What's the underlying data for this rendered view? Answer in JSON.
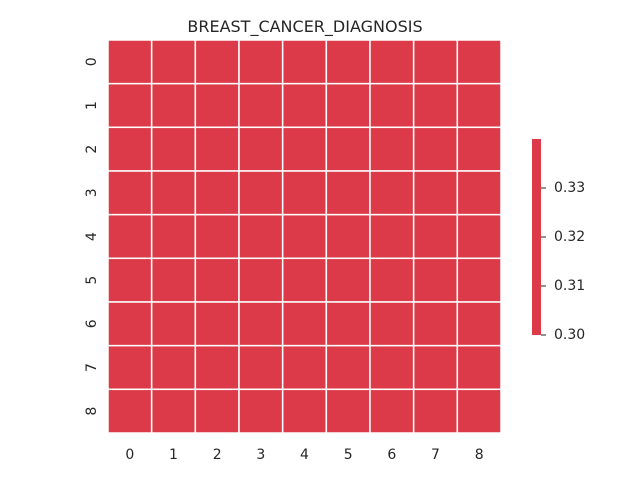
{
  "chart_data": {
    "type": "heatmap",
    "title": "BREAST_CANCER_DIAGNOSIS",
    "x_tick_labels": [
      "0",
      "1",
      "2",
      "3",
      "4",
      "5",
      "6",
      "7",
      "8"
    ],
    "y_tick_labels": [
      "0",
      "1",
      "2",
      "3",
      "4",
      "5",
      "6",
      "7",
      "8"
    ],
    "values": [
      [
        0.3,
        0.3,
        0.3,
        0.3,
        0.3,
        0.3,
        0.3,
        0.3,
        0.3
      ],
      [
        0.3,
        0.3,
        0.3,
        0.3,
        0.3,
        0.3,
        0.3,
        0.3,
        0.3
      ],
      [
        0.3,
        0.3,
        0.3,
        0.3,
        0.3,
        0.3,
        0.3,
        0.3,
        0.3
      ],
      [
        0.3,
        0.3,
        0.3,
        0.3,
        0.3,
        0.3,
        0.3,
        0.3,
        0.3
      ],
      [
        0.3,
        0.3,
        0.3,
        0.3,
        0.3,
        0.3,
        0.3,
        0.3,
        0.3
      ],
      [
        0.3,
        0.3,
        0.3,
        0.3,
        0.3,
        0.3,
        0.3,
        0.3,
        0.3
      ],
      [
        0.3,
        0.3,
        0.3,
        0.3,
        0.3,
        0.3,
        0.3,
        0.3,
        0.3
      ],
      [
        0.3,
        0.3,
        0.3,
        0.3,
        0.3,
        0.3,
        0.3,
        0.3,
        0.3
      ],
      [
        0.3,
        0.3,
        0.3,
        0.3,
        0.3,
        0.3,
        0.3,
        0.3,
        0.3
      ]
    ],
    "cell_color": "#dc3a48",
    "grid_line_color": "#ffffff",
    "colorbar": {
      "range": [
        0.3,
        0.34
      ],
      "tick_labels": [
        "0.30",
        "0.31",
        "0.32",
        "0.33"
      ],
      "tick_values": [
        0.3,
        0.31,
        0.32,
        0.33
      ],
      "position": "right"
    }
  }
}
